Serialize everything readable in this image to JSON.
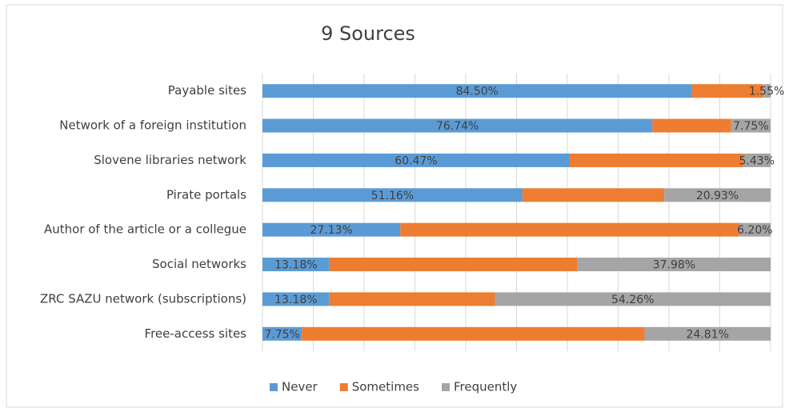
{
  "chart_data": {
    "type": "stacked_barh",
    "title": "9 Sources",
    "categories": [
      "Payable sites",
      "Network of a foreign institution",
      "Slovene libraries network",
      "Pirate portals",
      "Author of the article or a collegue",
      "Social networks",
      "ZRC SAZU network (subscriptions)",
      "Free-access sites"
    ],
    "series": [
      {
        "name": "Never",
        "color": "#5b9bd5",
        "values": [
          84.5,
          76.74,
          60.47,
          51.16,
          27.13,
          13.18,
          13.18,
          7.75
        ],
        "value_labels": [
          "84.50%",
          "76.74%",
          "60.47%",
          "51.16%",
          "27.13%",
          "13.18%",
          "13.18%",
          "7.75%"
        ]
      },
      {
        "name": "Sometimes",
        "color": "#ed7d31",
        "values": [
          13.95,
          15.51,
          34.1,
          27.91,
          66.67,
          48.84,
          32.56,
          67.44
        ]
      },
      {
        "name": "Frequently",
        "color": "#a5a5a5",
        "values": [
          1.55,
          7.75,
          5.43,
          20.93,
          6.2,
          37.98,
          54.26,
          24.81
        ],
        "value_labels": [
          "1.55%",
          "7.75%",
          "5.43%",
          "20.93%",
          "6.20%",
          "37.98%",
          "54.26%",
          "24.81%"
        ]
      }
    ],
    "xlim": [
      0,
      100
    ],
    "xticks": [
      0,
      10,
      20,
      30,
      40,
      50,
      60,
      70,
      80,
      90,
      100
    ],
    "grid": true,
    "legend": "bottom"
  }
}
